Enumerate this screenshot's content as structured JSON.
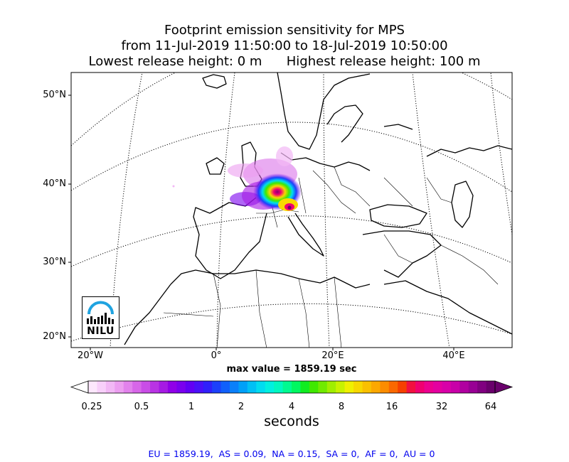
{
  "title": {
    "line1": "Footprint emission sensitivity for MPS",
    "line2": "from 11-Jul-2019 11:50:00 to 18-Jul-2019 10:50:00",
    "line3": "Lowest release height: 0 m      Highest release height: 100 m"
  },
  "map": {
    "lat_labels": [
      "50°N",
      "40°N",
      "30°N",
      "20°N"
    ],
    "lon_labels": [
      "20°W",
      "0°",
      "20°E",
      "40°E"
    ],
    "max_value": "max value = 1859.19 sec",
    "logo": {
      "text": "NILU"
    }
  },
  "colorbar": {
    "ticks": [
      "0.25",
      "0.5",
      "1",
      "2",
      "4",
      "8",
      "16",
      "32",
      "64"
    ],
    "unit": "seconds",
    "colors": [
      "#fde8fd",
      "#f8d0fa",
      "#f2b8f5",
      "#ec9ef0",
      "#e282ec",
      "#d766e8",
      "#c94de6",
      "#b933e4",
      "#a61ae4",
      "#9000e8",
      "#7a00ee",
      "#6200f4",
      "#4a10f8",
      "#3020fa",
      "#1c40fb",
      "#1060fb",
      "#0a80fa",
      "#00a0f8",
      "#00c0f5",
      "#00dcf0",
      "#00f0e0",
      "#00f8c0",
      "#00fa90",
      "#00f860",
      "#10ec20",
      "#40e800",
      "#70ea00",
      "#a0ee00",
      "#c8f200",
      "#f0f000",
      "#f8d800",
      "#fac000",
      "#fca800",
      "#fc8c00",
      "#fa6800",
      "#f64000",
      "#f21040",
      "#f00070",
      "#ec0090",
      "#e400a0",
      "#d800a8",
      "#c800a8",
      "#b000a0",
      "#980094",
      "#800080",
      "#6a006c"
    ]
  },
  "region_summary": "EU = 1859.19,  AS = 0.09,  NA = 0.15,  SA = 0,  AF = 0,  AU = 0"
}
